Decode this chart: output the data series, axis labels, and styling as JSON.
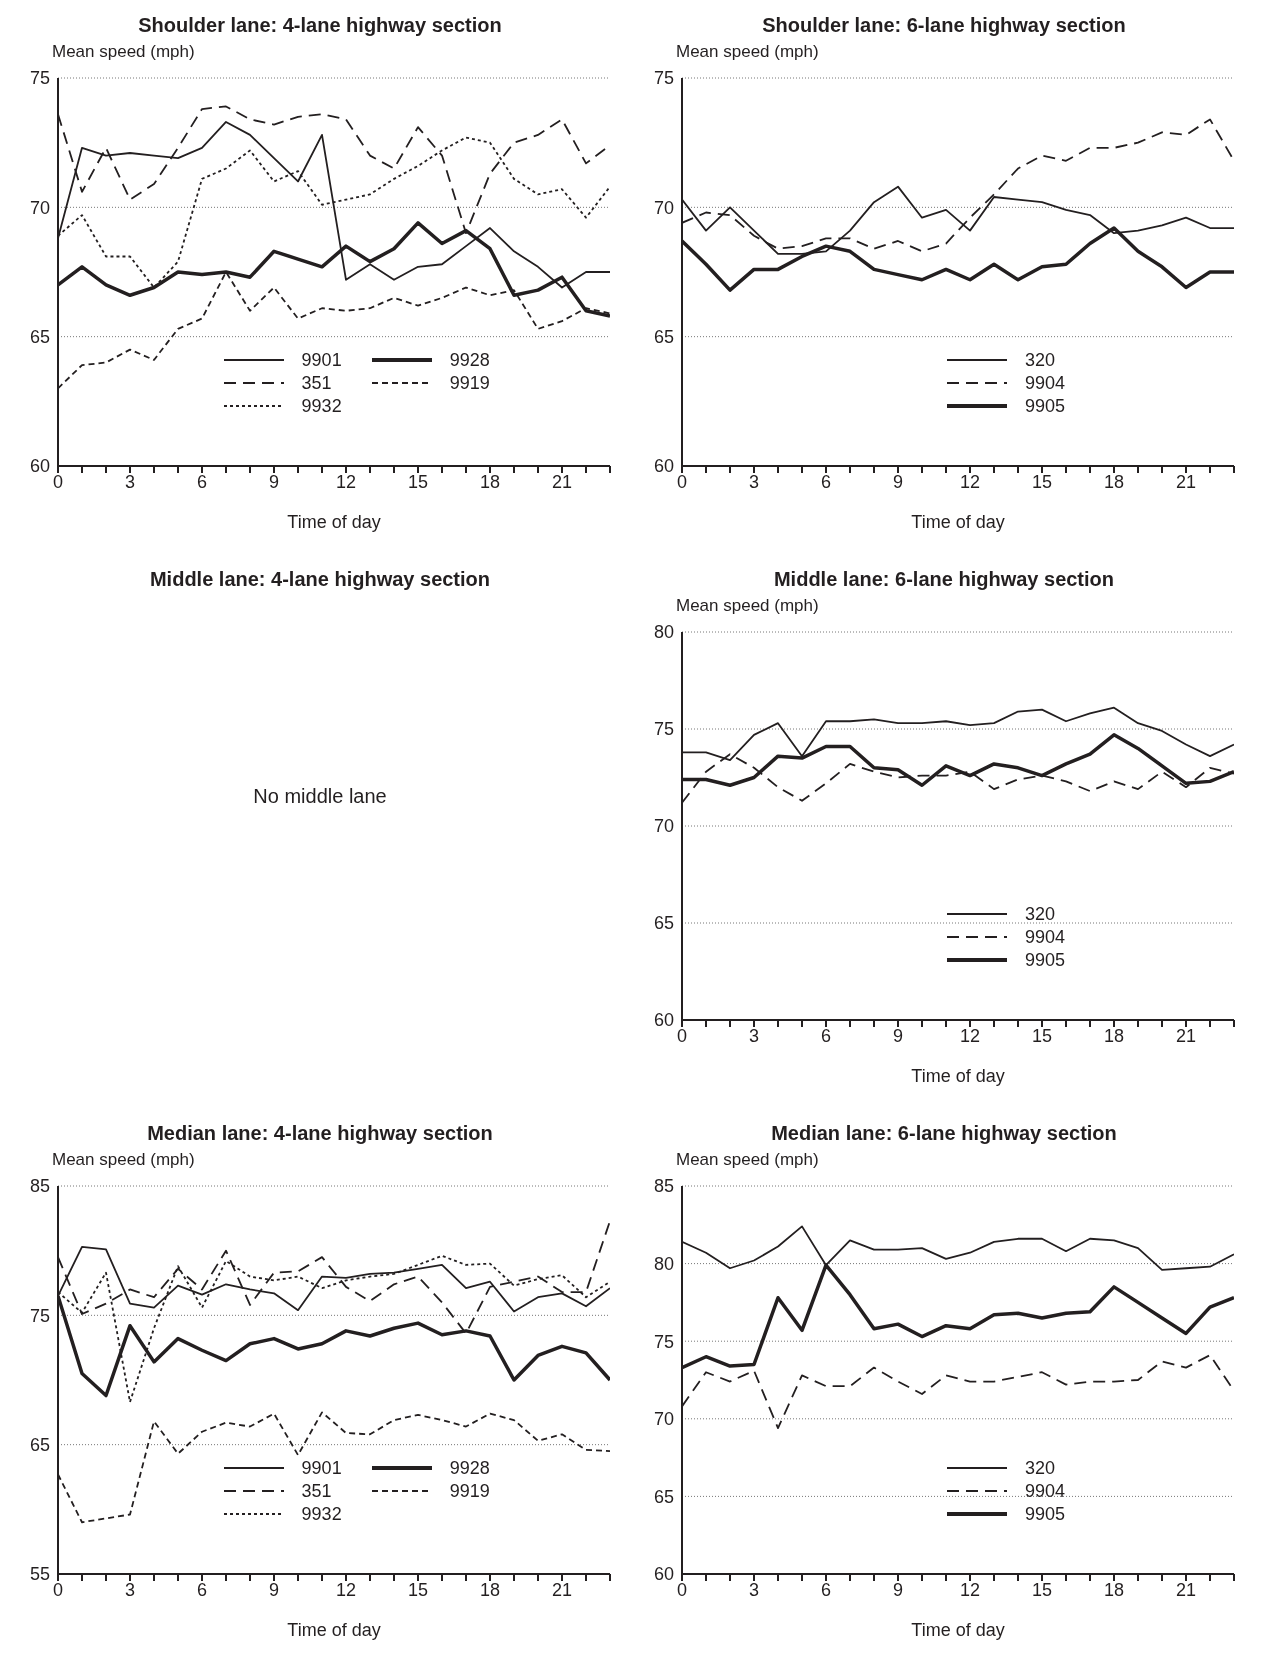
{
  "chart_data": [
    {
      "type": "line",
      "title": "Shoulder lane: 4-lane highway section",
      "xlabel": "Time of day",
      "ylabel": "Mean speed (mph)",
      "x": [
        0,
        1,
        2,
        3,
        4,
        5,
        6,
        7,
        8,
        9,
        10,
        11,
        12,
        13,
        14,
        15,
        16,
        17,
        18,
        19,
        20,
        21,
        22,
        23
      ],
      "xlim": [
        0,
        23
      ],
      "xticks": [
        0,
        {
          "value": 1,
          "label": null
        },
        {
          "value": 2,
          "label": null
        },
        3,
        {
          "value": 4,
          "label": null
        },
        {
          "value": 5,
          "label": null
        },
        6,
        {
          "value": 7,
          "label": null
        },
        {
          "value": 8,
          "label": null
        },
        9,
        {
          "value": 10,
          "label": null
        },
        {
          "value": 11,
          "label": null
        },
        12,
        {
          "value": 13,
          "label": null
        },
        {
          "value": 14,
          "label": null
        },
        15,
        {
          "value": 16,
          "label": null
        },
        {
          "value": 17,
          "label": null
        },
        18,
        {
          "value": 19,
          "label": null
        },
        {
          "value": 20,
          "label": null
        },
        21,
        {
          "value": 22,
          "label": null
        },
        {
          "value": 23,
          "label": null
        }
      ],
      "ylim": [
        60,
        75
      ],
      "yticks": [
        60,
        65,
        70,
        75
      ],
      "grid": "y",
      "legend": "bottom",
      "series": [
        {
          "name": "9901",
          "color": "#231f20",
          "line_style": "solid",
          "values": [
            68.8,
            72.3,
            72.0,
            72.1,
            72.0,
            71.9,
            72.3,
            73.3,
            72.8,
            71.9,
            71.0,
            72.8,
            67.2,
            67.8,
            67.2,
            67.7,
            67.8,
            68.5,
            69.2,
            68.3,
            67.7,
            66.9,
            67.5,
            67.5
          ]
        },
        {
          "name": "351",
          "color": "#231f20",
          "line_style": "dashed",
          "values": [
            73.6,
            70.6,
            72.3,
            70.3,
            70.9,
            72.3,
            73.8,
            73.9,
            73.4,
            73.2,
            73.5,
            73.6,
            73.4,
            72.0,
            71.5,
            73.1,
            72.0,
            69.0,
            71.3,
            72.5,
            72.8,
            73.4,
            71.7,
            72.4
          ]
        },
        {
          "name": "9932",
          "color": "#231f20",
          "line_style": "dotted",
          "values": [
            68.9,
            69.7,
            68.1,
            68.1,
            66.9,
            67.9,
            71.1,
            71.5,
            72.2,
            71.0,
            71.4,
            70.1,
            70.3,
            70.5,
            71.1,
            71.6,
            72.2,
            72.7,
            72.5,
            71.1,
            70.5,
            70.7,
            69.6,
            70.8
          ]
        },
        {
          "name": "9928",
          "color": "#231f20",
          "line_style": "solid",
          "values": [
            67.0,
            67.7,
            67.0,
            66.6,
            66.9,
            67.5,
            67.4,
            67.5,
            67.3,
            68.3,
            68.0,
            67.7,
            68.5,
            67.9,
            68.4,
            69.4,
            68.6,
            69.1,
            68.4,
            66.6,
            66.8,
            67.3,
            66.0,
            65.8
          ]
        },
        {
          "name": "9919",
          "color": "#231f20",
          "line_style": "dashed",
          "values": [
            63.0,
            63.9,
            64.0,
            64.5,
            64.1,
            65.3,
            65.7,
            67.5,
            66.0,
            66.9,
            65.7,
            66.1,
            66.0,
            66.1,
            66.5,
            66.2,
            66.5,
            66.9,
            66.6,
            66.8,
            65.3,
            65.6,
            66.1,
            65.9
          ]
        }
      ]
    },
    {
      "type": "line",
      "title": "Shoulder lane: 6-lane highway section",
      "xlabel": "Time of day",
      "ylabel": "Mean speed (mph)",
      "x": [
        0,
        1,
        2,
        3,
        4,
        5,
        6,
        7,
        8,
        9,
        10,
        11,
        12,
        13,
        14,
        15,
        16,
        17,
        18,
        19,
        20,
        21,
        22,
        23
      ],
      "xlim": [
        0,
        23
      ],
      "xticks": [
        0,
        {
          "value": 1,
          "label": null
        },
        {
          "value": 2,
          "label": null
        },
        3,
        {
          "value": 4,
          "label": null
        },
        {
          "value": 5,
          "label": null
        },
        6,
        {
          "value": 7,
          "label": null
        },
        {
          "value": 8,
          "label": null
        },
        9,
        {
          "value": 10,
          "label": null
        },
        {
          "value": 11,
          "label": null
        },
        12,
        {
          "value": 13,
          "label": null
        },
        {
          "value": 14,
          "label": null
        },
        15,
        {
          "value": 16,
          "label": null
        },
        {
          "value": 17,
          "label": null
        },
        18,
        {
          "value": 19,
          "label": null
        },
        {
          "value": 20,
          "label": null
        },
        21,
        {
          "value": 22,
          "label": null
        },
        {
          "value": 23,
          "label": null
        }
      ],
      "ylim": [
        60,
        75
      ],
      "yticks": [
        60,
        65,
        70,
        75
      ],
      "grid": "y",
      "legend": "bottom",
      "series": [
        {
          "name": "320",
          "color": "#231f20",
          "line_style": "solid",
          "values": [
            70.3,
            69.1,
            70.0,
            69.1,
            68.2,
            68.2,
            68.3,
            69.1,
            70.2,
            70.8,
            69.6,
            69.9,
            69.1,
            70.4,
            70.3,
            70.2,
            69.9,
            69.7,
            69.0,
            69.1,
            69.3,
            69.6,
            69.2,
            69.2
          ]
        },
        {
          "name": "9904",
          "color": "#231f20",
          "line_style": "dashed",
          "values": [
            69.4,
            69.8,
            69.7,
            68.9,
            68.4,
            68.5,
            68.8,
            68.8,
            68.4,
            68.7,
            68.3,
            68.6,
            69.6,
            70.5,
            71.5,
            72.0,
            71.8,
            72.3,
            72.3,
            72.5,
            72.9,
            72.8,
            73.4,
            71.8
          ]
        },
        {
          "name": "9905",
          "color": "#231f20",
          "line_style": "solid",
          "values": [
            68.7,
            67.8,
            66.8,
            67.6,
            67.6,
            68.1,
            68.5,
            68.3,
            67.6,
            67.4,
            67.2,
            67.6,
            67.2,
            67.8,
            67.2,
            67.7,
            67.8,
            68.6,
            69.2,
            68.3,
            67.7,
            66.9,
            67.5,
            67.5
          ]
        }
      ]
    },
    {
      "type": "other",
      "title": "Middle lane: 4-lane highway section",
      "annotations": [
        "No middle lane"
      ]
    },
    {
      "type": "line",
      "title": "Middle lane: 6-lane highway section",
      "xlabel": "Time of day",
      "ylabel": "Mean speed (mph)",
      "x": [
        0,
        1,
        2,
        3,
        4,
        5,
        6,
        7,
        8,
        9,
        10,
        11,
        12,
        13,
        14,
        15,
        16,
        17,
        18,
        19,
        20,
        21,
        22,
        23
      ],
      "xlim": [
        0,
        23
      ],
      "xticks": [
        0,
        {
          "value": 1,
          "label": null
        },
        {
          "value": 2,
          "label": null
        },
        3,
        {
          "value": 4,
          "label": null
        },
        {
          "value": 5,
          "label": null
        },
        6,
        {
          "value": 7,
          "label": null
        },
        {
          "value": 8,
          "label": null
        },
        9,
        {
          "value": 10,
          "label": null
        },
        {
          "value": 11,
          "label": null
        },
        12,
        {
          "value": 13,
          "label": null
        },
        {
          "value": 14,
          "label": null
        },
        15,
        {
          "value": 16,
          "label": null
        },
        {
          "value": 17,
          "label": null
        },
        18,
        {
          "value": 19,
          "label": null
        },
        {
          "value": 20,
          "label": null
        },
        21,
        {
          "value": 22,
          "label": null
        },
        {
          "value": 23,
          "label": null
        }
      ],
      "ylim": [
        60,
        80
      ],
      "yticks": [
        60,
        65,
        70,
        75,
        80
      ],
      "grid": "y",
      "legend": "bottom",
      "series": [
        {
          "name": "320",
          "color": "#231f20",
          "line_style": "solid",
          "values": [
            73.8,
            73.8,
            73.4,
            74.7,
            75.3,
            73.6,
            75.4,
            75.4,
            75.5,
            75.3,
            75.3,
            75.4,
            75.2,
            75.3,
            75.9,
            76.0,
            75.4,
            75.8,
            76.1,
            75.3,
            74.9,
            74.2,
            73.6,
            74.2
          ]
        },
        {
          "name": "9904",
          "color": "#231f20",
          "line_style": "dashed",
          "values": [
            71.2,
            72.8,
            73.7,
            73.0,
            72.0,
            71.3,
            72.2,
            73.2,
            72.8,
            72.5,
            72.6,
            72.6,
            72.8,
            71.9,
            72.4,
            72.6,
            72.3,
            71.8,
            72.3,
            71.9,
            72.8,
            72.0,
            73.0,
            72.7
          ]
        },
        {
          "name": "9905",
          "color": "#231f20",
          "line_style": "solid",
          "values": [
            72.4,
            72.4,
            72.1,
            72.5,
            73.6,
            73.5,
            74.1,
            74.1,
            73.0,
            72.9,
            72.1,
            73.1,
            72.6,
            73.2,
            73.0,
            72.6,
            73.2,
            73.7,
            74.7,
            74.0,
            73.1,
            72.2,
            72.3,
            72.8
          ]
        }
      ]
    },
    {
      "type": "line",
      "title": "Median lane: 4-lane highway section",
      "xlabel": "Time of day",
      "ylabel": "Mean speed (mph)",
      "x": [
        0,
        1,
        2,
        3,
        4,
        5,
        6,
        7,
        8,
        9,
        10,
        11,
        12,
        13,
        14,
        15,
        16,
        17,
        18,
        19,
        20,
        21,
        22,
        23
      ],
      "xlim": [
        0,
        23
      ],
      "xticks": [
        0,
        {
          "value": 1,
          "label": null
        },
        {
          "value": 2,
          "label": null
        },
        3,
        {
          "value": 4,
          "label": null
        },
        {
          "value": 5,
          "label": null
        },
        6,
        {
          "value": 7,
          "label": null
        },
        {
          "value": 8,
          "label": null
        },
        9,
        {
          "value": 10,
          "label": null
        },
        {
          "value": 11,
          "label": null
        },
        12,
        {
          "value": 13,
          "label": null
        },
        {
          "value": 14,
          "label": null
        },
        15,
        {
          "value": 16,
          "label": null
        },
        {
          "value": 17,
          "label": null
        },
        18,
        {
          "value": 19,
          "label": null
        },
        {
          "value": 20,
          "label": null
        },
        21,
        {
          "value": 22,
          "label": null
        },
        {
          "value": 23,
          "label": null
        }
      ],
      "ylim": [
        55,
        85
      ],
      "yticks": [
        55,
        65,
        75,
        85
      ],
      "grid": "y",
      "legend": "bottom",
      "series": [
        {
          "name": "9901",
          "color": "#231f20",
          "line_style": "solid",
          "values": [
            76.5,
            80.3,
            80.1,
            75.9,
            75.6,
            77.3,
            76.6,
            77.4,
            77.0,
            76.7,
            75.4,
            78.0,
            77.9,
            78.2,
            78.3,
            78.6,
            78.9,
            77.1,
            77.6,
            75.3,
            76.4,
            76.7,
            75.7,
            77.1
          ]
        },
        {
          "name": "351",
          "color": "#231f20",
          "line_style": "dashed",
          "values": [
            79.5,
            75.1,
            75.9,
            77.0,
            76.4,
            78.6,
            77.0,
            80.0,
            75.8,
            78.3,
            78.4,
            79.5,
            77.2,
            76.1,
            77.4,
            78.0,
            76.0,
            73.6,
            77.2,
            77.6,
            78.0,
            76.8,
            76.8,
            82.3
          ]
        },
        {
          "name": "9932",
          "color": "#231f20",
          "line_style": "dotted",
          "values": [
            76.8,
            75.2,
            78.3,
            68.3,
            74.0,
            78.8,
            75.6,
            79.2,
            78.0,
            77.7,
            78.0,
            77.1,
            77.7,
            78.0,
            78.2,
            78.9,
            79.6,
            78.9,
            79.0,
            77.3,
            77.8,
            78.1,
            76.4,
            77.6
          ]
        },
        {
          "name": "9928",
          "color": "#231f20",
          "line_style": "solid",
          "values": [
            76.5,
            70.5,
            68.8,
            74.2,
            71.4,
            73.2,
            72.3,
            71.5,
            72.8,
            73.2,
            72.4,
            72.8,
            73.8,
            73.4,
            74.0,
            74.4,
            73.5,
            73.8,
            73.4,
            70.0,
            71.9,
            72.6,
            72.1,
            70.0
          ]
        },
        {
          "name": "9919",
          "color": "#231f20",
          "line_style": "dashed",
          "values": [
            62.7,
            59.0,
            59.3,
            59.6,
            66.8,
            64.3,
            66.0,
            66.7,
            66.4,
            67.4,
            64.2,
            67.5,
            65.9,
            65.8,
            66.9,
            67.3,
            66.9,
            66.4,
            67.4,
            66.9,
            65.3,
            65.8,
            64.6,
            64.5
          ]
        }
      ]
    },
    {
      "type": "line",
      "title": "Median lane: 6-lane highway section",
      "xlabel": "Time of day",
      "ylabel": "Mean speed (mph)",
      "x": [
        0,
        1,
        2,
        3,
        4,
        5,
        6,
        7,
        8,
        9,
        10,
        11,
        12,
        13,
        14,
        15,
        16,
        17,
        18,
        19,
        20,
        21,
        22,
        23
      ],
      "xlim": [
        0,
        23
      ],
      "xticks": [
        0,
        {
          "value": 1,
          "label": null
        },
        {
          "value": 2,
          "label": null
        },
        3,
        {
          "value": 4,
          "label": null
        },
        {
          "value": 5,
          "label": null
        },
        6,
        {
          "value": 7,
          "label": null
        },
        {
          "value": 8,
          "label": null
        },
        9,
        {
          "value": 10,
          "label": null
        },
        {
          "value": 11,
          "label": null
        },
        12,
        {
          "value": 13,
          "label": null
        },
        {
          "value": 14,
          "label": null
        },
        15,
        {
          "value": 16,
          "label": null
        },
        {
          "value": 17,
          "label": null
        },
        18,
        {
          "value": 19,
          "label": null
        },
        {
          "value": 20,
          "label": null
        },
        21,
        {
          "value": 22,
          "label": null
        },
        {
          "value": 23,
          "label": null
        }
      ],
      "ylim": [
        60,
        85
      ],
      "yticks": [
        60,
        65,
        70,
        75,
        80,
        85
      ],
      "grid": "y",
      "legend": "bottom",
      "series": [
        {
          "name": "320",
          "color": "#231f20",
          "line_style": "solid",
          "values": [
            81.4,
            80.7,
            79.7,
            80.2,
            81.1,
            82.4,
            79.9,
            81.5,
            80.9,
            80.9,
            81.0,
            80.3,
            80.7,
            81.4,
            81.6,
            81.6,
            80.8,
            81.6,
            81.5,
            81.0,
            79.6,
            79.7,
            79.8,
            80.6
          ]
        },
        {
          "name": "9904",
          "color": "#231f20",
          "line_style": "dashed",
          "values": [
            70.8,
            73.0,
            72.4,
            73.1,
            69.4,
            72.8,
            72.1,
            72.1,
            73.3,
            72.4,
            71.6,
            72.8,
            72.4,
            72.4,
            72.7,
            73.0,
            72.2,
            72.4,
            72.4,
            72.5,
            73.7,
            73.3,
            74.1,
            71.8
          ]
        },
        {
          "name": "9905",
          "color": "#231f20",
          "line_style": "solid",
          "values": [
            73.3,
            74.0,
            73.4,
            73.5,
            77.8,
            75.7,
            79.9,
            78.0,
            75.8,
            76.1,
            75.3,
            76.0,
            75.8,
            76.7,
            76.8,
            76.5,
            76.8,
            76.9,
            78.5,
            77.5,
            76.5,
            75.5,
            77.2,
            77.8
          ]
        }
      ]
    }
  ]
}
